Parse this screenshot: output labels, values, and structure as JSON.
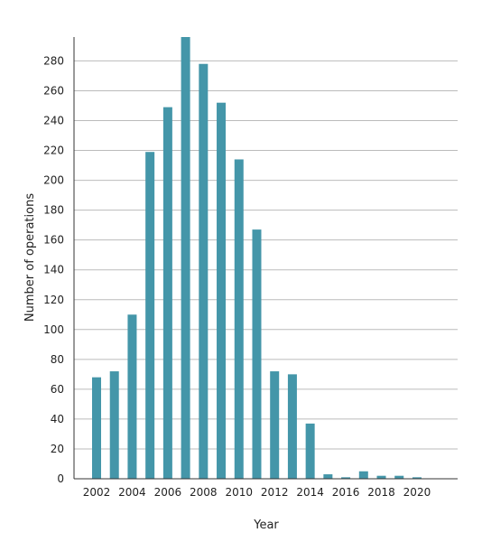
{
  "chart_data": {
    "type": "bar",
    "title": "",
    "xlabel": "Year",
    "ylabel": "Number of operations",
    "categories": [
      2002,
      2003,
      2004,
      2005,
      2006,
      2007,
      2008,
      2009,
      2010,
      2011,
      2012,
      2013,
      2014,
      2015,
      2016,
      2017,
      2018,
      2019,
      2020
    ],
    "values": [
      68,
      72,
      110,
      219,
      249,
      296,
      278,
      252,
      214,
      167,
      72,
      70,
      37,
      3,
      1,
      5,
      2,
      2,
      1
    ],
    "x_ticks": [
      "2002",
      "2004",
      "2006",
      "2008",
      "2010",
      "2012",
      "2014",
      "2016",
      "2018",
      "2020"
    ],
    "y_ticks": [
      0,
      20,
      40,
      60,
      80,
      100,
      120,
      140,
      160,
      180,
      200,
      220,
      240,
      260,
      280
    ],
    "ylim": [
      0,
      296
    ],
    "grid": true,
    "bar_color": "#4496a9",
    "grid_color": "#bbbbbb",
    "axis_color": "#333333"
  }
}
